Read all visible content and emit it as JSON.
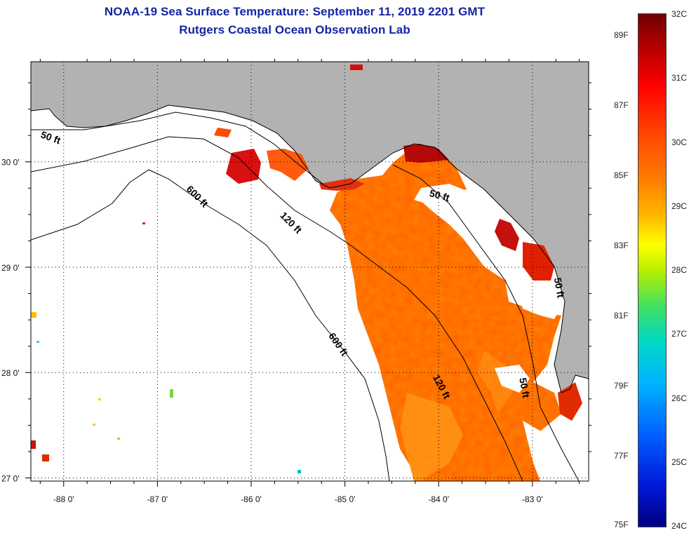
{
  "title_line1": "NOAA-19 Sea Surface Temperature:  September 11, 2019 2201 GMT",
  "title_line2": "Rutgers Coastal Ocean Observation Lab",
  "map": {
    "lat_labels": [
      {
        "value": 30,
        "text": "30 0'"
      },
      {
        "value": 29,
        "text": "29 0'"
      },
      {
        "value": 28,
        "text": "28 0'"
      },
      {
        "value": 27,
        "text": "27 0'"
      }
    ],
    "lon_labels": [
      {
        "value": -88,
        "text": "-88 0'"
      },
      {
        "value": -87,
        "text": "-87 0'"
      },
      {
        "value": -86,
        "text": "-86 0'"
      },
      {
        "value": -85,
        "text": "-85 0'"
      },
      {
        "value": -84,
        "text": "-84 0'"
      },
      {
        "value": -83,
        "text": "-83 0'"
      }
    ],
    "lat_range": [
      26.97,
      30.95
    ],
    "lon_range": [
      -88.35,
      -82.4
    ],
    "isobath_labels": [
      {
        "text": "50 ft",
        "lon": -88.15,
        "lat": 30.2,
        "angle": 20
      },
      {
        "text": "600 ft",
        "lon": -86.6,
        "lat": 29.65,
        "angle": 45
      },
      {
        "text": "120 ft",
        "lon": -85.6,
        "lat": 29.4,
        "angle": 45
      },
      {
        "text": "50 ft",
        "lon": -84.0,
        "lat": 29.65,
        "angle": 15
      },
      {
        "text": "600 ft",
        "lon": -85.1,
        "lat": 28.25,
        "angle": 55
      },
      {
        "text": "120 ft",
        "lon": -84.0,
        "lat": 27.85,
        "angle": 62
      },
      {
        "text": "50 ft",
        "lon": -83.12,
        "lat": 27.85,
        "angle": 80
      },
      {
        "text": "50 ft",
        "lon": -82.75,
        "lat": 28.8,
        "angle": 80
      }
    ],
    "land_color": "#b2b2b2",
    "background_color": "#ffffff"
  },
  "colorbar": {
    "celsius_labels": [
      "32C",
      "31C",
      "30C",
      "29C",
      "28C",
      "27C",
      "26C",
      "25C",
      "24C"
    ],
    "fahrenheit_labels": [
      "89F",
      "87F",
      "85F",
      "83F",
      "81F",
      "79F",
      "77F",
      "75F"
    ],
    "range_celsius": [
      24,
      32
    ],
    "range_fahrenheit": [
      75,
      89.6
    ]
  }
}
